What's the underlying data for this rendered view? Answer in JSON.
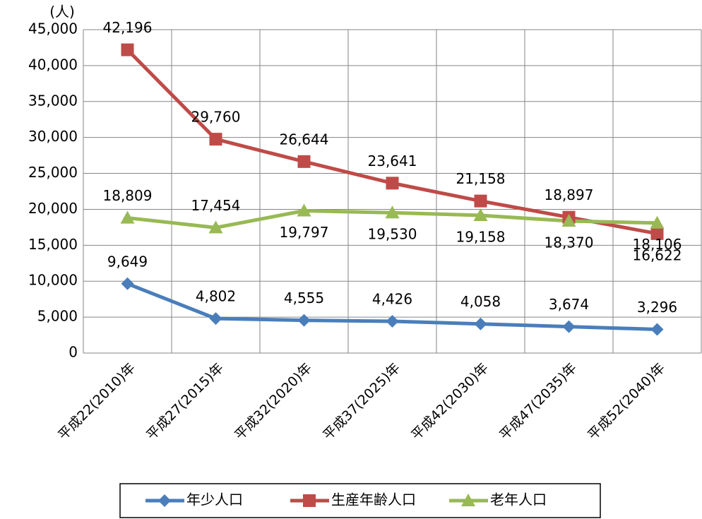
{
  "chart_data": {
    "type": "line",
    "y_label": "(人)",
    "categories": [
      "平成22(2010)年",
      "平成27(2015)年",
      "平成32(2020)年",
      "平成37(2025)年",
      "平成42(2030)年",
      "平成47(2035)年",
      "平成52(2040)年"
    ],
    "series": [
      {
        "name": "年少人口",
        "color": "#4a7ebb",
        "marker": "diamond",
        "values": [
          9649,
          4802,
          4555,
          4426,
          4058,
          3674,
          3296
        ],
        "value_labels": [
          "9,649",
          "4,802",
          "4,555",
          "4,426",
          "4,058",
          "3,674",
          "3,296"
        ]
      },
      {
        "name": "生産年齢人口",
        "color": "#be4b48",
        "marker": "square",
        "values": [
          42196,
          29760,
          26644,
          23641,
          21158,
          18897,
          16622
        ],
        "value_labels": [
          "42,196",
          "29,760",
          "26,644",
          "23,641",
          "21,158",
          "18,897",
          "16,622"
        ]
      },
      {
        "name": "老年人口",
        "color": "#98b954",
        "marker": "triangle",
        "values": [
          18809,
          17454,
          19797,
          19530,
          19158,
          18370,
          18106
        ],
        "value_labels": [
          "18,809",
          "17,454",
          "19,797",
          "19,530",
          "19,158",
          "18,370",
          "18,106"
        ]
      }
    ],
    "ylim": [
      0,
      45000
    ],
    "yticks": [
      0,
      {
        "value": 5000,
        "label": "5,000"
      },
      {
        "value": 10000,
        "label": "10,000"
      },
      {
        "value": 15000,
        "label": "15,000"
      },
      {
        "value": 20000,
        "label": "20,000"
      },
      {
        "value": 25000,
        "label": "25,000"
      },
      {
        "value": 30000,
        "label": "30,000"
      },
      {
        "value": 35000,
        "label": "35,000"
      },
      {
        "value": 40000,
        "label": "40,000"
      },
      {
        "value": 45000,
        "label": "45,000"
      }
    ],
    "grid": true,
    "legend": "bottom"
  }
}
